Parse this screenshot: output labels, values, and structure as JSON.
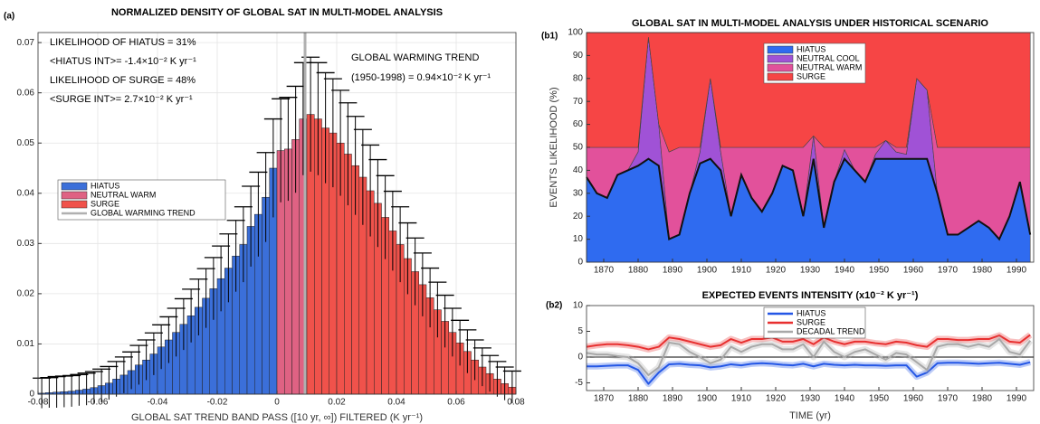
{
  "chart_data": [
    {
      "type": "histogram",
      "panel_label": "(a)",
      "title": "NORMALIZED DENSITY OF GLOBAL SAT IN MULTI-MODEL ANALYSIS",
      "xlabel": "GLOBAL SAT TREND BAND PASS ([10 yr, ∞]) FILTERED (K yr⁻¹)",
      "xlim": [
        -0.08,
        0.08
      ],
      "xticks": [
        -0.08,
        -0.06,
        -0.04,
        -0.02,
        0,
        0.02,
        0.04,
        0.06,
        0.08
      ],
      "ylim": [
        0,
        0.072
      ],
      "yticks": [
        0,
        0.01,
        0.02,
        0.03,
        0.04,
        0.05,
        0.06,
        0.07
      ],
      "grid": true,
      "legend": "center left",
      "annotations": [
        "LIKELIHOOD OF HIATUS = 31%",
        "<HIATUS INT>= -1.4×10⁻² K yr⁻¹",
        "LIKELIHOOD OF SURGE = 48%",
        "<SURGE INT>= 2.7×10⁻² K yr⁻¹",
        "GLOBAL WARMING TREND",
        "(1950-1998) = 0.94×10⁻² K yr⁻¹"
      ],
      "series": [
        {
          "name": "HIATUS",
          "color": "#3b6fd9",
          "bins": [
            -0.08,
            -0.0775,
            -0.075,
            -0.0725,
            -0.07,
            -0.0675,
            -0.065,
            -0.0625,
            -0.06,
            -0.0575,
            -0.055,
            -0.0525,
            -0.05,
            -0.0475,
            -0.045,
            -0.0425,
            -0.04,
            -0.0375,
            -0.035,
            -0.0325,
            -0.03,
            -0.0275,
            -0.025,
            -0.0225,
            -0.02,
            -0.0175,
            -0.015,
            -0.0125,
            -0.01,
            -0.0075,
            -0.005,
            -0.0025,
            0
          ],
          "values": [
            0.0002,
            0.0003,
            0.0004,
            0.0005,
            0.0006,
            0.0008,
            0.001,
            0.0013,
            0.0017,
            0.0022,
            0.003,
            0.0038,
            0.0047,
            0.0058,
            0.0068,
            0.008,
            0.0094,
            0.0108,
            0.0123,
            0.0139,
            0.0156,
            0.0173,
            0.0191,
            0.021,
            0.023,
            0.0251,
            0.0275,
            0.0298,
            0.0334,
            0.0358,
            0.0392,
            0.045
          ],
          "errors": [
            0.003,
            0.003,
            0.0031,
            0.0031,
            0.0031,
            0.0031,
            0.0032,
            0.0032,
            0.0033,
            0.0033,
            0.0035,
            0.0036,
            0.0037,
            0.0039,
            0.004,
            0.0042,
            0.0044,
            0.0046,
            0.0048,
            0.0051,
            0.0053,
            0.0056,
            0.0059,
            0.0062,
            0.0065,
            0.0068,
            0.0071,
            0.0075,
            0.008,
            0.0084,
            0.0089,
            0.0098
          ]
        },
        {
          "name": "NEUTRAL WARM",
          "color": "#df6283",
          "bins": [
            0,
            0.0025,
            0.005,
            0.0075,
            0.01
          ],
          "values": [
            0.0485,
            0.0488,
            0.0507,
            0.0548
          ],
          "errors": [
            0.0103,
            0.0103,
            0.0106,
            0.0112
          ]
        },
        {
          "name": "SURGE",
          "color": "#f0524b",
          "bins": [
            0.01,
            0.0125,
            0.015,
            0.0175,
            0.02,
            0.0225,
            0.025,
            0.0275,
            0.03,
            0.0325,
            0.035,
            0.0375,
            0.04,
            0.0425,
            0.045,
            0.0475,
            0.05,
            0.0525,
            0.055,
            0.0575,
            0.06,
            0.0625,
            0.065,
            0.0675,
            0.07,
            0.0725,
            0.075,
            0.0775,
            0.08
          ],
          "values": [
            0.0557,
            0.0548,
            0.053,
            0.052,
            0.05,
            0.0478,
            0.0455,
            0.0432,
            0.0405,
            0.038,
            0.0352,
            0.0325,
            0.0298,
            0.027,
            0.0244,
            0.0218,
            0.0192,
            0.0168,
            0.0145,
            0.0123,
            0.0102,
            0.0085,
            0.0068,
            0.0054,
            0.0041,
            0.003,
            0.0021,
            0.0014
          ],
          "errors": [
            0.0114,
            0.0112,
            0.011,
            0.0108,
            0.0105,
            0.0102,
            0.0098,
            0.0095,
            0.0091,
            0.0087,
            0.0083,
            0.0079,
            0.0075,
            0.0071,
            0.0067,
            0.0063,
            0.0059,
            0.0055,
            0.0052,
            0.0048,
            0.0045,
            0.0043,
            0.004,
            0.0038,
            0.0036,
            0.0035,
            0.0033,
            0.0032
          ]
        }
      ],
      "trend_line": {
        "name": "GLOBAL WARMING TREND",
        "color": "#b0b0b0",
        "x": 0.0094
      }
    },
    {
      "type": "stacked_area",
      "panel_label": "(b1)",
      "title": "GLOBAL SAT IN MULTI-MODEL ANALYSIS UNDER HISTORICAL SCENARIO",
      "ylabel": "EVENTS LIKELIHOOD (%)",
      "xlim": [
        1865,
        1995
      ],
      "xticks": [
        1870,
        1880,
        1890,
        1900,
        1910,
        1920,
        1930,
        1940,
        1950,
        1960,
        1970,
        1980,
        1990
      ],
      "ylim": [
        0,
        100
      ],
      "yticks": [
        0,
        10,
        20,
        30,
        40,
        50,
        60,
        70,
        80,
        90,
        100
      ],
      "grid": false,
      "legend": "upper center",
      "x": [
        1865,
        1868,
        1871,
        1874,
        1877,
        1880,
        1883,
        1886,
        1889,
        1892,
        1895,
        1898,
        1901,
        1904,
        1907,
        1910,
        1913,
        1916,
        1919,
        1922,
        1925,
        1928,
        1931,
        1934,
        1937,
        1940,
        1943,
        1946,
        1949,
        1952,
        1955,
        1958,
        1961,
        1964,
        1967,
        1970,
        1973,
        1976,
        1979,
        1982,
        1985,
        1988,
        1991,
        1994
      ],
      "series": [
        {
          "name": "HIATUS",
          "color": "#2f6bf0",
          "values": [
            37,
            30,
            28,
            38,
            40,
            42,
            45,
            42,
            10,
            12,
            30,
            43,
            45,
            40,
            20,
            38,
            28,
            22,
            30,
            42,
            40,
            20,
            45,
            15,
            35,
            45,
            40,
            35,
            45,
            45,
            45,
            45,
            45,
            45,
            30,
            12,
            12,
            15,
            18,
            15,
            10,
            20,
            35,
            12
          ]
        },
        {
          "name": "NEUTRAL COOL",
          "color": "#a052d6",
          "values": [
            0,
            0,
            0,
            0,
            0,
            6,
            53,
            18,
            0,
            0,
            0,
            5,
            35,
            8,
            0,
            0,
            0,
            0,
            0,
            0,
            0,
            0,
            10,
            0,
            0,
            4,
            0,
            0,
            2,
            8,
            3,
            2,
            35,
            30,
            0,
            0,
            0,
            0,
            0,
            0,
            0,
            0,
            0,
            0
          ]
        },
        {
          "name": "NEUTRAL WARM",
          "color": "#e2519b",
          "values": [
            13,
            20,
            22,
            12,
            10,
            2,
            0,
            0,
            38,
            38,
            20,
            2,
            0,
            2,
            30,
            12,
            22,
            28,
            20,
            8,
            10,
            30,
            0,
            35,
            15,
            1,
            10,
            15,
            3,
            0,
            2,
            3,
            0,
            0,
            20,
            38,
            38,
            35,
            32,
            35,
            40,
            30,
            15,
            38
          ]
        },
        {
          "name": "SURGE",
          "color": "#f64545",
          "values": [
            50,
            50,
            50,
            50,
            50,
            50,
            2,
            40,
            52,
            50,
            50,
            50,
            20,
            50,
            50,
            50,
            50,
            50,
            50,
            50,
            50,
            50,
            45,
            50,
            50,
            50,
            50,
            50,
            50,
            47,
            50,
            50,
            20,
            25,
            50,
            50,
            50,
            50,
            50,
            50,
            50,
            50,
            50,
            50
          ]
        }
      ]
    },
    {
      "type": "line",
      "panel_label": "(b2)",
      "title": "EXPECTED EVENTS INTENSITY (x10⁻² K yr⁻¹)",
      "xlabel": "TIME (yr)",
      "xlim": [
        1865,
        1995
      ],
      "xticks": [
        1870,
        1880,
        1890,
        1900,
        1910,
        1920,
        1930,
        1940,
        1950,
        1960,
        1970,
        1980,
        1990
      ],
      "ylim": [
        -6.5,
        10
      ],
      "yticks": [
        -5,
        0,
        5,
        10
      ],
      "grid": false,
      "legend": "upper center",
      "x": [
        1865,
        1868,
        1871,
        1874,
        1877,
        1880,
        1883,
        1886,
        1889,
        1892,
        1895,
        1898,
        1901,
        1904,
        1907,
        1910,
        1913,
        1916,
        1919,
        1922,
        1925,
        1928,
        1931,
        1934,
        1937,
        1940,
        1943,
        1946,
        1949,
        1952,
        1955,
        1958,
        1961,
        1964,
        1967,
        1970,
        1973,
        1976,
        1979,
        1982,
        1985,
        1988,
        1991,
        1994
      ],
      "series": [
        {
          "name": "HIATUS",
          "color": "#2457e6",
          "values": [
            -1.8,
            -1.8,
            -1.7,
            -1.6,
            -1.6,
            -2.5,
            -5.2,
            -3,
            -1.4,
            -1.3,
            -1.5,
            -1.6,
            -2,
            -1.8,
            -1.4,
            -1.6,
            -1.3,
            -1.2,
            -1.3,
            -1.5,
            -1.6,
            -1.3,
            -1.8,
            -1.3,
            -1.5,
            -1.6,
            -1.5,
            -1.6,
            -1.6,
            -1.7,
            -1.6,
            -1.6,
            -3.8,
            -3,
            -1.2,
            -1.1,
            -1.1,
            -1.2,
            -1.3,
            -1.2,
            -1.1,
            -1.3,
            -1.5,
            -1
          ]
        },
        {
          "name": "SURGE",
          "color": "#e83030",
          "values": [
            2,
            2.3,
            2.5,
            2.5,
            2.3,
            2,
            1.5,
            2,
            3.8,
            3.5,
            3,
            2.5,
            2,
            2.3,
            3.5,
            2.8,
            3.5,
            3.5,
            3.8,
            3,
            3,
            3.5,
            2.5,
            3.8,
            3,
            2.5,
            3,
            3,
            2.7,
            2.5,
            3,
            2.8,
            2.3,
            2,
            3.5,
            3.5,
            3.3,
            3.3,
            3.5,
            3.5,
            4.2,
            3,
            2.8,
            4.3
          ]
        },
        {
          "name": "DECADAL TREND",
          "color": "#a8a8a8",
          "values": [
            0.8,
            0.5,
            0.5,
            0.2,
            0,
            -1.2,
            -3.5,
            -2,
            2.8,
            2.5,
            1,
            0,
            -1.2,
            -0.5,
            2,
            1,
            2,
            2.5,
            2.5,
            1.5,
            1.5,
            2.5,
            0,
            3,
            1,
            0,
            1,
            1.5,
            0.5,
            -0.5,
            0.8,
            0.5,
            -1,
            -2.5,
            2,
            2.5,
            2.5,
            2,
            2.5,
            2,
            3.5,
            1,
            0.5,
            3.2
          ]
        }
      ]
    }
  ]
}
